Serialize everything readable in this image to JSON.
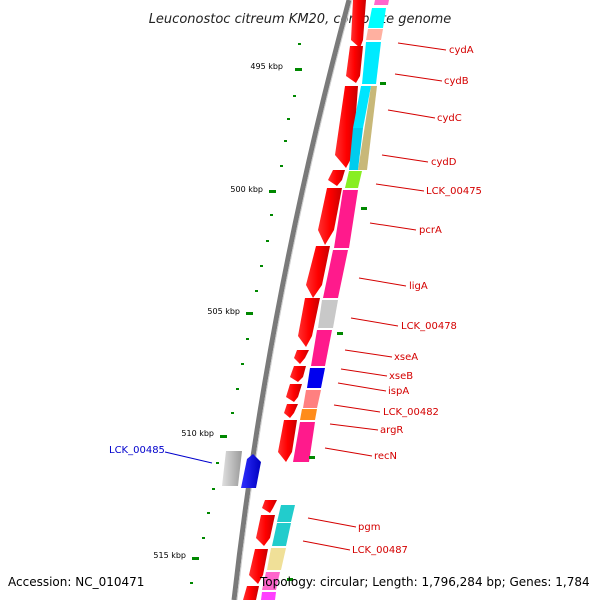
{
  "title": "Leuconostoc citreum KM20, complete genome",
  "footer": {
    "accession": "Accession: NC_010471",
    "topology": "Topology: circular; Length: 1,796,284 bp; Genes: 1,784"
  },
  "kbp_ticks": [
    {
      "label": "495 kbp",
      "kbp": 495
    },
    {
      "label": "500 kbp",
      "kbp": 500
    },
    {
      "label": "505 kbp",
      "kbp": 505
    },
    {
      "label": "510 kbp",
      "kbp": 510
    },
    {
      "label": "515 kbp",
      "kbp": 515
    }
  ],
  "gene_labels": [
    {
      "id": "cydA",
      "label": "cydA",
      "strand": "minus",
      "color": "#d40000"
    },
    {
      "id": "cydB",
      "label": "cydB",
      "strand": "minus",
      "color": "#d40000"
    },
    {
      "id": "cydC",
      "label": "cydC",
      "strand": "minus",
      "color": "#d40000"
    },
    {
      "id": "cydD",
      "label": "cydD",
      "strand": "minus",
      "color": "#d40000"
    },
    {
      "id": "LCK_00475",
      "label": "LCK_00475",
      "strand": "minus",
      "color": "#d40000"
    },
    {
      "id": "pcrA",
      "label": "pcrA",
      "strand": "minus",
      "color": "#d40000"
    },
    {
      "id": "ligA",
      "label": "ligA",
      "strand": "minus",
      "color": "#d40000"
    },
    {
      "id": "LCK_00478",
      "label": "LCK_00478",
      "strand": "minus",
      "color": "#d40000"
    },
    {
      "id": "xseA",
      "label": "xseA",
      "strand": "minus",
      "color": "#d40000"
    },
    {
      "id": "xseB",
      "label": "xseB",
      "strand": "minus",
      "color": "#d40000"
    },
    {
      "id": "ispA",
      "label": "ispA",
      "strand": "minus",
      "color": "#d40000"
    },
    {
      "id": "LCK_00482",
      "label": "LCK_00482",
      "strand": "minus",
      "color": "#d40000"
    },
    {
      "id": "argR",
      "label": "argR",
      "strand": "minus",
      "color": "#d40000"
    },
    {
      "id": "recN",
      "label": "recN",
      "strand": "minus",
      "color": "#d40000"
    },
    {
      "id": "LCK_00485",
      "label": "LCK_00485",
      "strand": "plus",
      "color": "#0000cc"
    },
    {
      "id": "pgm",
      "label": "pgm",
      "strand": "minus",
      "color": "#d40000"
    },
    {
      "id": "LCK_00487",
      "label": "LCK_00487",
      "strand": "minus",
      "color": "#d40000"
    }
  ],
  "colors": {
    "backbone": "#7a7a7a",
    "minus_strand_gene": "#ff0000",
    "plus_strand_gene": "#0000ff",
    "gc_dots": "#008800",
    "label_red": "#d40000",
    "label_blue": "#0000cc"
  }
}
